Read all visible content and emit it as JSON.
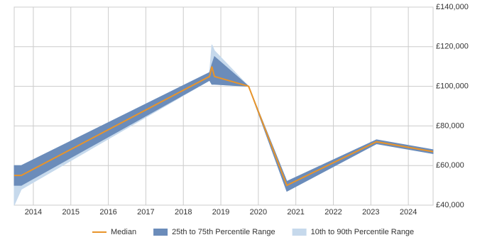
{
  "chart_data": {
    "type": "line",
    "x": [
      2013.49,
      2013.68,
      2018.7,
      2018.76,
      2018.83,
      2019.74,
      2020.76,
      2023.15,
      2024.66
    ],
    "xlim": [
      2013.49,
      2024.66
    ],
    "xticks": [
      2014,
      2015,
      2016,
      2017,
      2018,
      2019,
      2020,
      2021,
      2022,
      2023,
      2024
    ],
    "ylim": [
      40000,
      140000
    ],
    "yticks": [
      {
        "value": 40000,
        "label": "£40,000"
      },
      {
        "value": 60000,
        "label": "£60,000"
      },
      {
        "value": 80000,
        "label": "£80,000"
      },
      {
        "value": 100000,
        "label": "£100,000"
      },
      {
        "value": 120000,
        "label": "£120,000"
      },
      {
        "value": 140000,
        "label": "£140,000"
      }
    ],
    "grid": true,
    "legend": "bottom",
    "bands": [
      {
        "name": "10th to 90th Percentile Range",
        "color": "#c6d9ec",
        "lower": [
          40000,
          48000,
          103000,
          101000,
          101000,
          100000,
          47000,
          71000,
          66000
        ],
        "upper": [
          60000,
          60000,
          107000,
          121000,
          118000,
          100000,
          52000,
          73000,
          68000
        ]
      },
      {
        "name": "25th to 75th Percentile Range",
        "color": "#6b8cba",
        "lower": [
          50000,
          50000,
          103000,
          101000,
          101000,
          100000,
          47000,
          71000,
          66000
        ],
        "upper": [
          60000,
          60000,
          107000,
          111000,
          115000,
          100000,
          52000,
          73000,
          68000
        ]
      }
    ],
    "series": [
      {
        "name": "Median",
        "color": "#e8942a",
        "values": [
          55000,
          55000,
          105000,
          110000,
          105000,
          100000,
          50000,
          72000,
          67000
        ]
      }
    ]
  }
}
